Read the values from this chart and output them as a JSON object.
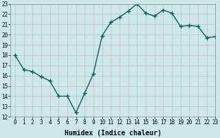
{
  "x": [
    0,
    1,
    2,
    3,
    4,
    5,
    6,
    7,
    8,
    9,
    10,
    11,
    12,
    13,
    14,
    15,
    16,
    17,
    18,
    19,
    20,
    21,
    22,
    23
  ],
  "y": [
    18.0,
    16.6,
    16.4,
    15.9,
    15.5,
    14.0,
    14.0,
    12.4,
    14.3,
    16.2,
    19.9,
    21.2,
    21.7,
    22.3,
    23.0,
    22.1,
    21.8,
    22.4,
    22.1,
    20.8,
    20.9,
    20.8,
    19.7,
    19.8
  ],
  "line_color": "#006060",
  "marker": "+",
  "marker_size": 4,
  "linewidth": 1.0,
  "xlabel": "Humidex (Indice chaleur)",
  "ylim": [
    12,
    23
  ],
  "xlim": [
    -0.5,
    23
  ],
  "yticks": [
    12,
    13,
    14,
    15,
    16,
    17,
    18,
    19,
    20,
    21,
    22,
    23
  ],
  "xticks": [
    0,
    1,
    2,
    3,
    4,
    5,
    6,
    7,
    8,
    9,
    10,
    11,
    12,
    13,
    14,
    15,
    16,
    17,
    18,
    19,
    20,
    21,
    22,
    23
  ],
  "bg_color": "#cce8e8",
  "grid_color": "#b8d4d4",
  "xlabel_fontsize": 7,
  "tick_fontsize": 5.5,
  "marker_color": "#006060"
}
